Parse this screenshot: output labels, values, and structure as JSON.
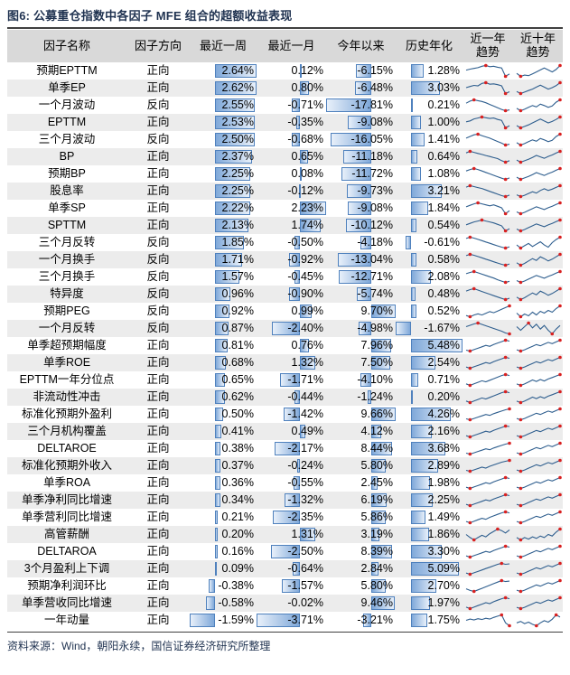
{
  "title": "图6: 公募重仓指数中各因子 MFE 组合的超额收益表现",
  "source": "资料来源：Wind，朝阳永续，国信证券经济研究所整理",
  "headers": {
    "name": "因子名称",
    "dir": "因子方向",
    "week": "最近一周",
    "month": "最近一月",
    "ytd": "今年以来",
    "hist": "历史年化",
    "trend_year_line1": "近一年",
    "trend_year_line2": "趋势",
    "trend_decade_line1": "近十年",
    "trend_decade_line2": "趋势"
  },
  "colors": {
    "title_color": "#1f3250",
    "header_bg": "#d9d9d9",
    "stripe_bg": "#ececec",
    "rule_color": "#3f3f3f",
    "bar_border": "#4f81bd",
    "bar_dark": "#7fa8d9",
    "bar_light": "#e8f0fa",
    "spark_line": "#2e5e8e",
    "spark_dot": "#d92121"
  },
  "rows": [
    {
      "name": "预期EPTTM",
      "dir": "正向",
      "w": "2.64%",
      "m": "0.12%",
      "y": "-6.15%",
      "h": "1.28%",
      "s1": [
        4.6,
        5.0,
        5.3,
        5.6,
        6.2,
        6.5,
        6.0,
        6.2,
        5.8,
        5.5,
        2.0,
        3.0
      ],
      "s2": [
        3.2,
        2.0,
        2.5,
        2.3,
        3.0,
        3.8,
        4.6,
        5.4,
        4.6,
        3.8,
        4.8,
        6.4
      ]
    },
    {
      "name": "单季EP",
      "dir": "正向",
      "w": "2.62%",
      "m": "0.80%",
      "y": "-6.48%",
      "h": "3.03%",
      "s1": [
        4.4,
        4.9,
        5.4,
        5.2,
        6.3,
        6.6,
        5.9,
        6.1,
        5.7,
        5.2,
        1.8,
        2.6
      ],
      "s2": [
        2.6,
        1.8,
        2.4,
        3.0,
        3.6,
        4.4,
        5.2,
        4.4,
        3.6,
        4.2,
        5.0,
        6.2
      ]
    },
    {
      "name": "一个月波动",
      "dir": "反向",
      "w": "2.55%",
      "m": "-0.71%",
      "y": "-17.81%",
      "h": "0.21%",
      "s1": [
        5.2,
        6.2,
        6.8,
        6.4,
        6.0,
        5.4,
        4.6,
        3.8,
        3.0,
        2.2,
        1.6,
        2.0
      ],
      "s2": [
        3.0,
        2.0,
        2.6,
        3.4,
        4.2,
        3.6,
        4.8,
        4.2,
        3.4,
        4.0,
        5.6,
        6.6
      ]
    },
    {
      "name": "EPTTM",
      "dir": "正向",
      "w": "2.53%",
      "m": "-0.35%",
      "y": "-9.08%",
      "h": "1.00%",
      "s1": [
        4.4,
        4.8,
        5.6,
        6.0,
        6.4,
        6.1,
        5.8,
        6.0,
        5.4,
        5.0,
        1.9,
        2.8
      ],
      "s2": [
        2.8,
        1.9,
        2.5,
        3.1,
        3.9,
        4.7,
        5.5,
        4.7,
        3.9,
        4.5,
        5.3,
        6.3
      ]
    },
    {
      "name": "三个月波动",
      "dir": "反向",
      "w": "2.50%",
      "m": "-0.68%",
      "y": "-16.05%",
      "h": "1.41%",
      "s1": [
        5.0,
        5.8,
        6.6,
        6.9,
        6.2,
        5.6,
        5.0,
        4.2,
        3.4,
        2.6,
        1.7,
        2.1
      ],
      "s2": [
        3.1,
        2.1,
        2.7,
        3.5,
        4.3,
        3.7,
        4.9,
        4.3,
        3.5,
        4.1,
        5.7,
        6.7
      ]
    },
    {
      "name": "BP",
      "dir": "正向",
      "w": "2.37%",
      "m": "0.65%",
      "y": "-11.18%",
      "h": "0.64%",
      "s1": [
        5.4,
        6.0,
        5.6,
        5.2,
        4.8,
        4.4,
        4.0,
        3.6,
        3.2,
        2.4,
        1.8,
        2.4
      ],
      "s2": [
        2.9,
        2.0,
        2.6,
        3.2,
        4.0,
        4.8,
        4.2,
        3.6,
        4.4,
        5.0,
        5.8,
        6.5
      ]
    },
    {
      "name": "预期BP",
      "dir": "正向",
      "w": "2.25%",
      "m": "0.08%",
      "y": "-11.72%",
      "h": "1.08%",
      "s1": [
        5.2,
        5.8,
        6.2,
        5.8,
        5.2,
        4.6,
        4.0,
        3.4,
        2.8,
        2.2,
        1.7,
        2.3
      ],
      "s2": [
        3.0,
        2.1,
        2.7,
        3.3,
        4.1,
        4.9,
        4.3,
        3.7,
        4.5,
        5.1,
        5.9,
        6.6
      ]
    },
    {
      "name": "股息率",
      "dir": "正向",
      "w": "2.25%",
      "m": "-0.12%",
      "y": "-9.73%",
      "h": "3.21%",
      "s1": [
        5.6,
        6.2,
        5.8,
        5.4,
        5.0,
        4.4,
        3.8,
        3.2,
        2.6,
        2.0,
        1.6,
        2.2
      ],
      "s2": [
        2.7,
        1.9,
        2.5,
        3.3,
        4.1,
        3.5,
        4.7,
        5.5,
        4.7,
        5.3,
        6.1,
        6.9
      ]
    },
    {
      "name": "单季SP",
      "dir": "正向",
      "w": "2.22%",
      "m": "2.23%",
      "y": "-9.08%",
      "h": "1.84%",
      "s1": [
        4.8,
        5.4,
        6.0,
        6.4,
        6.0,
        5.6,
        5.2,
        5.6,
        5.0,
        4.4,
        2.0,
        3.2
      ],
      "s2": [
        2.8,
        2.0,
        2.6,
        3.4,
        4.2,
        5.0,
        4.4,
        3.8,
        4.6,
        5.2,
        6.0,
        6.7
      ]
    },
    {
      "name": "SPTTM",
      "dir": "正向",
      "w": "2.13%",
      "m": "1.74%",
      "y": "-10.12%",
      "h": "0.54%",
      "s1": [
        4.6,
        5.2,
        5.8,
        6.2,
        6.6,
        6.2,
        5.8,
        5.4,
        4.8,
        4.2,
        2.1,
        3.0
      ],
      "s2": [
        2.9,
        2.1,
        2.7,
        3.5,
        4.3,
        5.1,
        4.5,
        3.9,
        4.7,
        5.3,
        6.1,
        6.8
      ]
    },
    {
      "name": "三个月反转",
      "dir": "反向",
      "w": "1.85%",
      "m": "-0.50%",
      "y": "-4.18%",
      "h": "-0.61%",
      "s1": [
        6.2,
        6.8,
        6.4,
        5.8,
        5.2,
        4.6,
        4.0,
        3.4,
        2.8,
        2.2,
        1.8,
        2.4
      ],
      "s2": [
        4.2,
        3.4,
        4.0,
        4.6,
        3.8,
        4.4,
        5.0,
        4.2,
        3.6,
        4.8,
        5.6,
        6.2
      ]
    },
    {
      "name": "一个月换手",
      "dir": "反向",
      "w": "1.71%",
      "m": "-0.92%",
      "y": "-13.04%",
      "h": "0.58%",
      "s1": [
        6.0,
        6.6,
        6.2,
        5.6,
        5.0,
        4.4,
        3.8,
        3.2,
        2.6,
        2.0,
        1.6,
        2.2
      ],
      "s2": [
        3.2,
        2.4,
        3.0,
        3.8,
        4.6,
        4.0,
        5.2,
        4.6,
        3.8,
        4.4,
        5.2,
        6.0
      ]
    },
    {
      "name": "三个月换手",
      "dir": "反向",
      "w": "1.57%",
      "m": "-0.45%",
      "y": "-12.71%",
      "h": "2.08%",
      "s1": [
        5.8,
        6.4,
        6.8,
        6.2,
        5.6,
        5.0,
        4.4,
        3.8,
        3.0,
        2.4,
        1.8,
        2.3
      ],
      "s2": [
        3.0,
        2.2,
        2.8,
        3.6,
        4.4,
        5.2,
        4.6,
        4.0,
        4.8,
        5.4,
        6.2,
        6.9
      ]
    },
    {
      "name": "特异度",
      "dir": "反向",
      "w": "0.96%",
      "m": "-0.90%",
      "y": "-5.74%",
      "h": "0.48%",
      "s1": [
        5.6,
        6.2,
        6.6,
        6.0,
        5.4,
        4.8,
        4.2,
        3.6,
        3.0,
        2.4,
        1.9,
        2.5
      ],
      "s2": [
        3.3,
        2.5,
        3.1,
        3.9,
        4.7,
        4.1,
        5.3,
        4.7,
        3.9,
        4.5,
        5.3,
        6.1
      ]
    },
    {
      "name": "预期PEG",
      "dir": "反向",
      "w": "0.92%",
      "m": "0.99%",
      "y": "9.70%",
      "h": "0.52%",
      "s1": [
        3.4,
        3.0,
        3.6,
        4.0,
        3.6,
        4.2,
        4.8,
        4.4,
        5.0,
        5.6,
        6.2,
        6.8
      ],
      "s2": [
        4.4,
        3.6,
        4.2,
        3.8,
        4.6,
        4.0,
        4.8,
        4.4,
        5.0,
        4.6,
        5.4,
        6.0
      ]
    },
    {
      "name": "一个月反转",
      "dir": "反向",
      "w": "0.87%",
      "m": "-2.40%",
      "y": "-4.98%",
      "h": "-1.67%",
      "s1": [
        4.8,
        5.4,
        6.0,
        6.4,
        5.8,
        5.2,
        4.6,
        4.0,
        3.4,
        2.8,
        2.0,
        1.6
      ],
      "s2": [
        4.6,
        4.0,
        4.6,
        5.2,
        4.4,
        5.0,
        4.2,
        4.8,
        4.0,
        3.4,
        4.2,
        4.8
      ]
    },
    {
      "name": "单季超预期幅度",
      "dir": "正向",
      "w": "0.81%",
      "m": "0.76%",
      "y": "7.96%",
      "h": "5.48%",
      "s1": [
        2.6,
        2.2,
        2.8,
        3.4,
        4.0,
        4.6,
        4.2,
        5.0,
        5.6,
        6.2,
        6.8,
        6.4
      ],
      "s2": [
        2.4,
        1.8,
        2.4,
        3.2,
        4.0,
        4.8,
        4.2,
        5.0,
        5.8,
        5.2,
        6.0,
        6.8
      ]
    },
    {
      "name": "单季ROE",
      "dir": "正向",
      "w": "0.68%",
      "m": "1.32%",
      "y": "7.50%",
      "h": "2.54%",
      "s1": [
        2.8,
        2.3,
        2.9,
        3.5,
        4.1,
        4.7,
        4.3,
        5.1,
        5.7,
        6.3,
        6.9,
        6.5
      ],
      "s2": [
        2.5,
        1.9,
        2.5,
        3.3,
        4.1,
        4.9,
        4.3,
        5.1,
        5.9,
        5.3,
        6.1,
        6.9
      ]
    },
    {
      "name": "EPTTM一年分位点",
      "dir": "正向",
      "w": "0.65%",
      "m": "-1.71%",
      "y": "-4.10%",
      "h": "0.71%",
      "s1": [
        3.0,
        2.4,
        3.0,
        3.6,
        4.2,
        3.8,
        4.4,
        5.0,
        5.6,
        6.2,
        6.6,
        6.2
      ],
      "s2": [
        3.2,
        2.6,
        3.2,
        4.0,
        4.8,
        4.2,
        5.0,
        4.4,
        5.2,
        5.8,
        6.4,
        7.0
      ]
    },
    {
      "name": "非流动性冲击",
      "dir": "正向",
      "w": "0.62%",
      "m": "-0.44%",
      "y": "-1.24%",
      "h": "0.20%",
      "s1": [
        3.2,
        2.6,
        3.2,
        3.8,
        4.4,
        4.0,
        4.6,
        5.2,
        5.8,
        6.4,
        6.8,
        6.4
      ],
      "s2": [
        3.4,
        2.8,
        3.4,
        4.2,
        5.0,
        4.4,
        5.2,
        4.6,
        5.4,
        6.0,
        6.6,
        7.2
      ]
    },
    {
      "name": "标准化预期外盈利",
      "dir": "正向",
      "w": "0.50%",
      "m": "-1.42%",
      "y": "9.66%",
      "h": "4.26%",
      "s1": [
        2.4,
        2.0,
        2.6,
        3.2,
        3.8,
        4.4,
        4.0,
        4.8,
        5.4,
        6.0,
        6.6,
        7.0
      ],
      "s2": [
        2.2,
        1.6,
        2.2,
        3.0,
        3.8,
        4.6,
        4.0,
        4.8,
        5.6,
        5.0,
        5.8,
        6.6
      ]
    },
    {
      "name": "三个月机构覆盖",
      "dir": "正向",
      "w": "0.41%",
      "m": "0.49%",
      "y": "4.12%",
      "h": "2.16%",
      "s1": [
        2.7,
        2.2,
        2.8,
        3.4,
        4.0,
        4.6,
        4.2,
        5.0,
        5.6,
        6.2,
        6.8,
        6.6
      ],
      "s2": [
        2.6,
        2.0,
        2.6,
        3.4,
        4.2,
        5.0,
        4.4,
        5.2,
        6.0,
        5.4,
        6.2,
        7.0
      ]
    },
    {
      "name": "DELTAROE",
      "dir": "正向",
      "w": "0.38%",
      "m": "-2.17%",
      "y": "8.44%",
      "h": "3.68%",
      "s1": [
        2.5,
        2.1,
        2.7,
        3.3,
        3.9,
        4.5,
        4.1,
        4.9,
        5.5,
        6.1,
        6.7,
        7.1
      ],
      "s2": [
        2.3,
        1.7,
        2.3,
        3.1,
        3.9,
        4.7,
        4.1,
        4.9,
        5.7,
        5.1,
        5.9,
        6.7
      ]
    },
    {
      "name": "标准化预期外收入",
      "dir": "正向",
      "w": "0.37%",
      "m": "-0.24%",
      "y": "5.80%",
      "h": "2.89%",
      "s1": [
        2.6,
        2.2,
        2.8,
        3.4,
        4.0,
        3.6,
        4.4,
        5.0,
        5.6,
        6.2,
        6.6,
        7.0
      ],
      "s2": [
        2.4,
        1.8,
        2.4,
        3.2,
        4.0,
        4.8,
        4.2,
        5.0,
        5.8,
        5.2,
        6.0,
        6.8
      ]
    },
    {
      "name": "单季ROA",
      "dir": "正向",
      "w": "0.36%",
      "m": "-0.55%",
      "y": "2.45%",
      "h": "1.98%",
      "s1": [
        2.9,
        2.4,
        3.0,
        3.6,
        4.2,
        4.8,
        4.4,
        5.2,
        5.8,
        6.4,
        7.0,
        6.6
      ],
      "s2": [
        2.7,
        2.1,
        2.7,
        3.5,
        4.3,
        5.1,
        4.5,
        5.3,
        6.1,
        5.5,
        6.3,
        7.1
      ]
    },
    {
      "name": "单季净利同比增速",
      "dir": "正向",
      "w": "0.34%",
      "m": "-1.32%",
      "y": "6.19%",
      "h": "2.25%",
      "s1": [
        3.0,
        2.5,
        3.1,
        3.7,
        4.3,
        4.9,
        4.5,
        5.3,
        5.9,
        6.5,
        7.1,
        6.7
      ],
      "s2": [
        2.8,
        2.2,
        2.8,
        3.6,
        4.4,
        5.2,
        4.6,
        5.4,
        6.2,
        5.6,
        6.4,
        7.2
      ]
    },
    {
      "name": "单季营利同比增速",
      "dir": "正向",
      "w": "0.21%",
      "m": "-2.35%",
      "y": "5.86%",
      "h": "1.49%",
      "s1": [
        3.1,
        2.6,
        3.2,
        3.8,
        4.4,
        4.0,
        4.8,
        5.4,
        6.0,
        6.6,
        7.0,
        6.6
      ],
      "s2": [
        2.9,
        2.3,
        2.9,
        3.7,
        4.5,
        5.3,
        4.7,
        5.5,
        6.3,
        5.7,
        6.5,
        7.3
      ]
    },
    {
      "name": "高管薪酬",
      "dir": "正向",
      "w": "0.20%",
      "m": "1.31%",
      "y": "3.19%",
      "h": "1.86%",
      "s1": [
        4.6,
        3.8,
        3.2,
        3.8,
        4.4,
        4.0,
        4.8,
        5.4,
        6.0,
        5.6,
        5.0,
        5.8
      ],
      "s2": [
        3.8,
        3.2,
        3.8,
        3.4,
        4.0,
        3.6,
        4.2,
        3.8,
        4.6,
        4.2,
        5.2,
        6.0
      ]
    },
    {
      "name": "DELTAROA",
      "dir": "正向",
      "w": "0.16%",
      "m": "-2.50%",
      "y": "8.39%",
      "h": "3.30%",
      "s1": [
        2.8,
        2.3,
        2.9,
        3.5,
        4.1,
        4.7,
        4.3,
        5.1,
        5.7,
        6.3,
        6.9,
        6.5
      ],
      "s2": [
        2.6,
        2.0,
        2.6,
        3.4,
        4.2,
        5.0,
        4.4,
        5.2,
        6.0,
        5.4,
        6.2,
        7.0
      ]
    },
    {
      "name": "3个月盈利上下调",
      "dir": "正向",
      "w": "0.09%",
      "m": "-0.64%",
      "y": "2.84%",
      "h": "5.09%",
      "s1": [
        2.7,
        2.2,
        2.8,
        3.4,
        4.0,
        4.6,
        5.2,
        5.8,
        6.4,
        6.8,
        6.4,
        6.6
      ],
      "s2": [
        2.5,
        1.9,
        2.5,
        3.3,
        4.1,
        4.9,
        4.3,
        5.1,
        5.9,
        5.3,
        6.1,
        6.9
      ]
    },
    {
      "name": "预期净利润环比",
      "dir": "正向",
      "w": "-0.38%",
      "m": "-1.57%",
      "y": "5.80%",
      "h": "2.70%",
      "s1": [
        3.4,
        2.8,
        2.4,
        3.0,
        3.6,
        4.2,
        4.8,
        5.4,
        6.0,
        6.6,
        6.2,
        6.4
      ],
      "s2": [
        2.7,
        2.1,
        2.7,
        3.5,
        4.3,
        5.1,
        4.5,
        5.3,
        6.1,
        5.5,
        6.3,
        7.1
      ]
    },
    {
      "name": "单季营收同比增速",
      "dir": "正向",
      "w": "-0.58%",
      "m": "-0.02%",
      "y": "9.46%",
      "h": "1.97%",
      "s1": [
        3.2,
        2.6,
        3.2,
        3.8,
        4.4,
        5.0,
        4.6,
        5.4,
        6.0,
        6.6,
        7.0,
        6.6
      ],
      "s2": [
        2.9,
        2.3,
        2.9,
        3.7,
        4.5,
        5.3,
        4.7,
        5.5,
        6.3,
        5.7,
        6.5,
        7.3
      ]
    },
    {
      "name": "一年动量",
      "dir": "正向",
      "w": "-1.59%",
      "m": "-3.71%",
      "y": "-3.21%",
      "h": "1.75%",
      "s1": [
        4.4,
        5.0,
        4.6,
        5.2,
        4.8,
        5.4,
        5.0,
        5.8,
        6.4,
        7.0,
        3.2,
        1.8
      ],
      "s2": [
        4.0,
        4.4,
        3.8,
        4.2,
        3.6,
        3.2,
        4.0,
        4.6,
        4.2,
        5.0,
        6.2,
        5.6
      ]
    }
  ]
}
